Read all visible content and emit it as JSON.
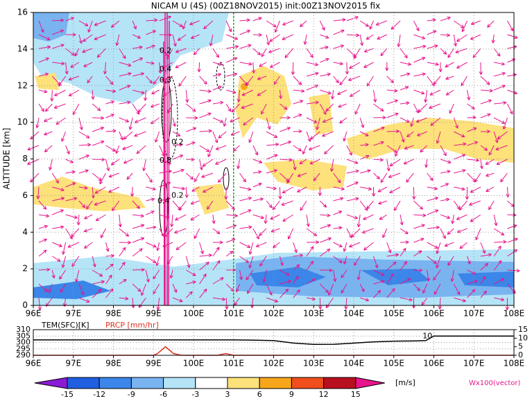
{
  "chart_data": [
    {
      "type": "cross-section",
      "title": "NICAM U (4S) (00Z18NOV2015) init:00Z13NOV2015 fix",
      "ylabel": "ALTITUDE [km]",
      "xlim": [
        96,
        108
      ],
      "ylim": [
        0,
        16
      ],
      "xticks": [
        {
          "value": 96,
          "label": "96E"
        },
        {
          "value": 97,
          "label": "97E"
        },
        {
          "value": 98,
          "label": "98E"
        },
        {
          "value": 99,
          "label": "99E"
        },
        {
          "value": 100,
          "label": "100E"
        },
        {
          "value": 101,
          "label": "101E"
        },
        {
          "value": 102,
          "label": "102E"
        },
        {
          "value": 103,
          "label": "103E"
        },
        {
          "value": 104,
          "label": "104E"
        },
        {
          "value": 105,
          "label": "105E"
        },
        {
          "value": 106,
          "label": "106E"
        },
        {
          "value": 107,
          "label": "107E"
        },
        {
          "value": 108,
          "label": "108E"
        }
      ],
      "yticks": [
        0,
        2,
        4,
        6,
        8,
        10,
        12,
        14,
        16
      ],
      "grid": true,
      "marker_x": 101,
      "marker_color": "#22aa22",
      "contour_labels": [
        {
          "text": "0.2",
          "x": 99.3,
          "y": 13.9
        },
        {
          "text": "0.4",
          "x": 99.3,
          "y": 12.9
        },
        {
          "text": "0.3",
          "x": 99.3,
          "y": 12.3
        },
        {
          "text": "0.2",
          "x": 99.6,
          "y": 8.9
        },
        {
          "text": "0.8",
          "x": 99.3,
          "y": 7.9
        },
        {
          "text": "0.2",
          "x": 99.6,
          "y": 6.0
        },
        {
          "text": "0.4",
          "x": 99.25,
          "y": 5.7
        }
      ],
      "colorbar": {
        "levels": [
          -15,
          -12,
          -9,
          -6,
          -3,
          3,
          6,
          9,
          12,
          15
        ],
        "colors": [
          "#8a1bd6",
          "#1f5fe0",
          "#3b86e8",
          "#79b4f0",
          "#b5e4f7",
          "#ffffff",
          "#fde17a",
          "#f7a61c",
          "#f04e1c",
          "#b8101e",
          "#e8158c"
        ],
        "label": "[m/s]"
      },
      "vector_label": "Wx100(vector)"
    },
    {
      "type": "line",
      "ylim": [
        290,
        310
      ],
      "yticks": [
        290,
        295,
        300,
        305,
        310
      ],
      "y2lim": [
        0,
        15
      ],
      "y2ticks": [
        0,
        5,
        10,
        15
      ],
      "annotation": {
        "text": "10",
        "x": 105.84,
        "y": 305
      },
      "series": [
        {
          "name": "TEM(SFC)[K]",
          "color": "#000000",
          "x": [
            96,
            97,
            98,
            99,
            100,
            101,
            101.5,
            102,
            102.5,
            103,
            103.5,
            104,
            104.5,
            105,
            105.5,
            105.8,
            106,
            106.5,
            107,
            108
          ],
          "values": [
            302,
            302,
            302,
            302,
            302,
            302,
            301.8,
            301.5,
            299.5,
            298.5,
            298.6,
            299.5,
            300.5,
            301,
            301.2,
            301.5,
            305,
            305,
            305,
            305
          ]
        },
        {
          "name": "PRCP [mm/hr]",
          "color": "#e03020",
          "axis": "y2",
          "x": [
            96,
            99,
            99.1,
            99.3,
            99.5,
            99.7,
            100.6,
            100.8,
            101,
            108
          ],
          "values": [
            0,
            0,
            1,
            5,
            1,
            0,
            0,
            1,
            0,
            0
          ]
        }
      ]
    }
  ]
}
